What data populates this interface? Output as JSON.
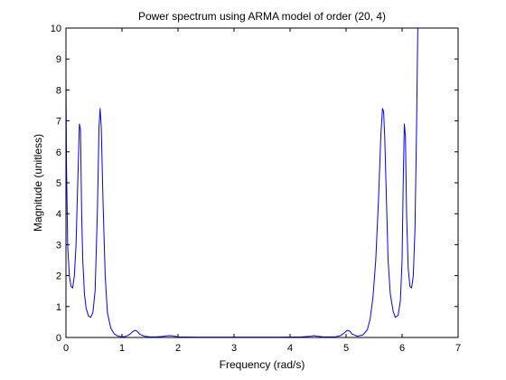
{
  "chart_data": {
    "type": "line",
    "title": "Power spectrum using ARMA model of order (20, 4)",
    "xlabel": "Frequency (rad/s)",
    "ylabel": "Magnitude (unitless)",
    "xlim": [
      0,
      7
    ],
    "ylim": [
      0,
      10
    ],
    "xticks": [
      0,
      1,
      2,
      3,
      4,
      5,
      6,
      7
    ],
    "yticks": [
      0,
      1,
      2,
      3,
      4,
      5,
      6,
      7,
      8,
      9,
      10
    ],
    "grid": false,
    "line_color": "#0000ff",
    "series": [
      {
        "x": [
          0.0,
          0.01,
          0.03,
          0.06,
          0.09,
          0.12,
          0.15,
          0.18,
          0.21,
          0.24,
          0.26,
          0.28,
          0.3,
          0.33,
          0.36,
          0.4,
          0.44,
          0.48,
          0.52,
          0.56,
          0.59,
          0.61,
          0.63,
          0.66,
          0.7,
          0.74,
          0.8,
          0.86,
          0.92,
          1.0,
          1.05,
          1.1,
          1.15,
          1.2,
          1.24,
          1.27,
          1.32,
          1.4,
          1.5,
          1.6,
          1.7,
          1.8,
          1.85,
          1.9,
          2.0,
          2.3,
          2.6,
          3.0,
          3.4,
          3.8,
          4.2,
          4.38,
          4.43,
          4.48,
          4.6,
          4.8,
          4.9,
          4.97,
          5.02,
          5.07,
          5.1,
          5.2,
          5.3,
          5.38,
          5.43,
          5.48,
          5.53,
          5.58,
          5.62,
          5.65,
          5.67,
          5.69,
          5.72,
          5.75,
          5.79,
          5.84,
          5.88,
          5.93,
          5.97,
          6.0,
          6.02,
          6.04,
          6.06,
          6.08,
          6.11,
          6.14,
          6.17,
          6.2,
          6.23,
          6.26,
          6.28
        ],
        "y": [
          8.4,
          5.5,
          3.0,
          2.0,
          1.65,
          1.6,
          2.0,
          3.0,
          5.0,
          6.9,
          6.7,
          4.0,
          2.5,
          1.4,
          0.95,
          0.7,
          0.65,
          0.8,
          1.5,
          4.0,
          6.8,
          7.4,
          6.8,
          4.5,
          2.0,
          0.8,
          0.3,
          0.12,
          0.05,
          0.02,
          0.03,
          0.06,
          0.12,
          0.2,
          0.23,
          0.2,
          0.1,
          0.04,
          0.02,
          0.02,
          0.03,
          0.05,
          0.06,
          0.05,
          0.02,
          0.01,
          0.01,
          0.01,
          0.01,
          0.01,
          0.02,
          0.04,
          0.06,
          0.04,
          0.02,
          0.02,
          0.06,
          0.15,
          0.23,
          0.2,
          0.12,
          0.04,
          0.08,
          0.25,
          0.6,
          1.3,
          2.5,
          4.5,
          6.5,
          7.4,
          7.3,
          6.5,
          4.5,
          2.5,
          1.4,
          0.85,
          0.65,
          0.72,
          1.2,
          2.5,
          5.0,
          6.9,
          6.5,
          4.0,
          2.2,
          1.65,
          1.6,
          2.0,
          3.5,
          7.0,
          10.0
        ]
      }
    ]
  }
}
